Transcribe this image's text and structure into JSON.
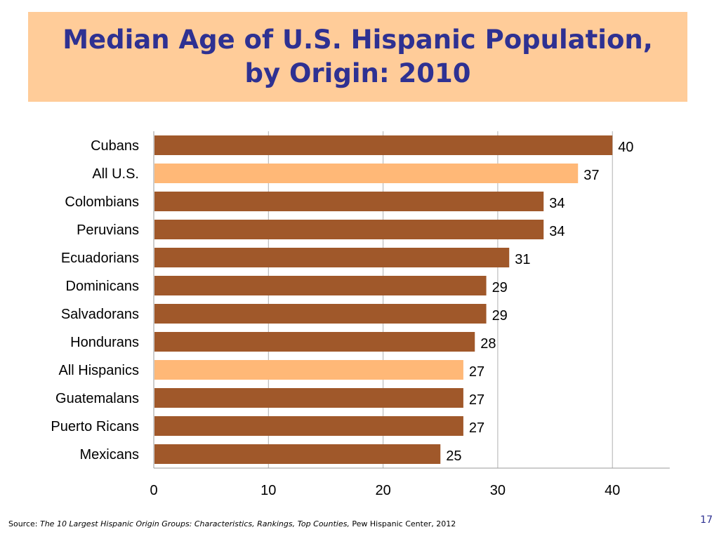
{
  "slide": {
    "title_line1": "Median Age of U.S. Hispanic Population,",
    "title_line2": "by Origin: 2010",
    "source_prefix": "Source: ",
    "source_title": "The 10 Largest Hispanic Origin Groups: Characteristics, Rankings, Top Counties,",
    "source_suffix": " Pew Hispanic Center, 2012",
    "page_number": "17",
    "colors": {
      "title_background": "#ffcc99",
      "title_text": "#2e3192",
      "bar_origin": "#a0582a",
      "bar_aggregate": "#ffb877"
    }
  },
  "chart_data": {
    "type": "bar",
    "orientation": "horizontal",
    "title": "Median Age of U.S. Hispanic Population, by Origin: 2010",
    "categories": [
      "Cubans",
      "All U.S.",
      "Colombians",
      "Peruvians",
      "Ecuadorians",
      "Dominicans",
      "Salvadorans",
      "Hondurans",
      "All Hispanics",
      "Guatemalans",
      "Puerto Ricans",
      "Mexicans"
    ],
    "values": [
      40,
      37,
      34,
      34,
      31,
      29,
      29,
      28,
      27,
      27,
      27,
      25
    ],
    "highlighted": [
      "All U.S.",
      "All Hispanics"
    ],
    "xlim": [
      0,
      45
    ],
    "xticks": [
      0,
      10,
      20,
      30,
      40
    ],
    "grid": true,
    "data_labels": true,
    "xlabel": "",
    "ylabel": ""
  }
}
